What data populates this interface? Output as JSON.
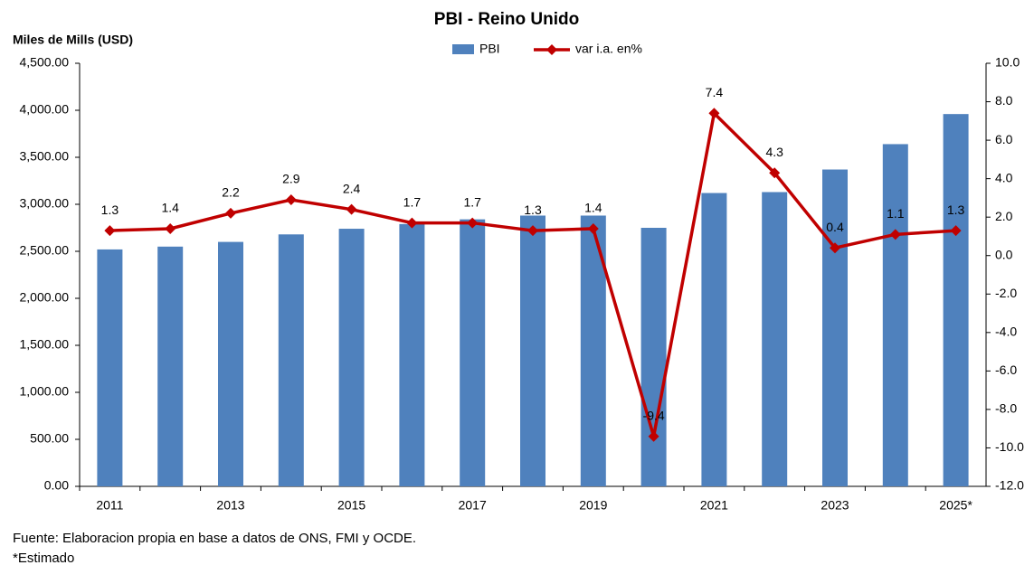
{
  "chart_data": {
    "type": "bar_line",
    "title": "PBI - Reino Unido",
    "y_label": "Miles de Mills (USD)",
    "categories": [
      "2011",
      null,
      "2013",
      null,
      "2015",
      null,
      "2017",
      null,
      "2019",
      null,
      "2021",
      null,
      "2023",
      null,
      "2025*"
    ],
    "series": [
      {
        "name": "PBI",
        "type": "bar",
        "color": "#4f81bd",
        "values": [
          2520,
          2550,
          2600,
          2680,
          2740,
          2790,
          2840,
          2880,
          2880,
          2750,
          3120,
          3130,
          3370,
          3640,
          3960
        ]
      },
      {
        "name": "var i.a. en%",
        "type": "line",
        "axis": "y2",
        "color": "#c00000",
        "values": [
          1.3,
          1.4,
          2.2,
          2.9,
          2.4,
          1.7,
          1.7,
          1.3,
          1.4,
          -9.4,
          7.4,
          4.3,
          0.4,
          1.1,
          1.3
        ]
      }
    ],
    "ylim": [
      0,
      4500
    ],
    "yticks": [
      {
        "value": 0,
        "label": "0.00"
      },
      {
        "value": 500,
        "label": "500.00"
      },
      {
        "value": 1000,
        "label": "1,000.00"
      },
      {
        "value": 1500,
        "label": "1,500.00"
      },
      {
        "value": 2000,
        "label": "2,000.00"
      },
      {
        "value": 2500,
        "label": "2,500.00"
      },
      {
        "value": 3000,
        "label": "3,000.00"
      },
      {
        "value": 3500,
        "label": "3,500.00"
      },
      {
        "value": 4000,
        "label": "4,000.00"
      },
      {
        "value": 4500,
        "label": "4,500.00"
      }
    ],
    "y2lim": [
      -12,
      10
    ],
    "y2ticks": [
      {
        "value": -12,
        "label": "-12.0"
      },
      {
        "value": -10,
        "label": "-10.0"
      },
      {
        "value": -8,
        "label": "-8.0"
      },
      {
        "value": -6,
        "label": "-6.0"
      },
      {
        "value": -4,
        "label": "-4.0"
      },
      {
        "value": -2,
        "label": "-2.0"
      },
      {
        "value": 0,
        "label": "0.0"
      },
      {
        "value": 2,
        "label": "2.0"
      },
      {
        "value": 4,
        "label": "4.0"
      },
      {
        "value": 6,
        "label": "6.0"
      },
      {
        "value": 8,
        "label": "8.0"
      },
      {
        "value": 10,
        "label": "10.0"
      }
    ],
    "legend": "top",
    "notes": [
      "Fuente: Elaboracion propia en base a datos de ONS, FMI y OCDE.",
      "*Estimado"
    ]
  }
}
